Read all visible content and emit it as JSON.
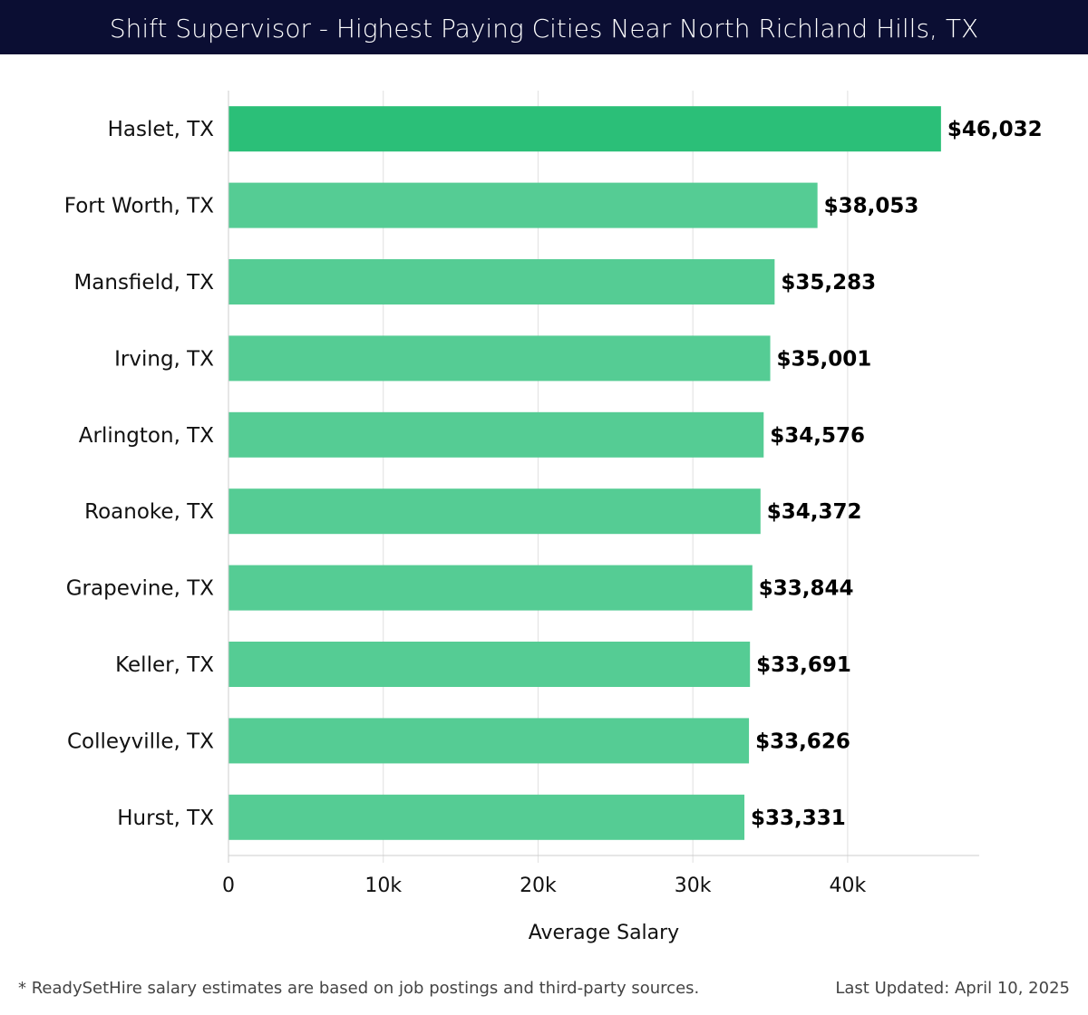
{
  "header": {
    "title": "Shift Supervisor - Highest Paying Cities Near North Richland Hills, TX"
  },
  "chart_data": {
    "type": "bar",
    "orientation": "horizontal",
    "categories": [
      "Haslet, TX",
      "Fort Worth, TX",
      "Mansfield, TX",
      "Irving, TX",
      "Arlington, TX",
      "Roanoke, TX",
      "Grapevine, TX",
      "Keller, TX",
      "Colleyville, TX",
      "Hurst, TX"
    ],
    "values": [
      46032,
      38053,
      35283,
      35001,
      34576,
      34372,
      33844,
      33691,
      33626,
      33331
    ],
    "value_labels": [
      "$46,032",
      "$38,053",
      "$35,283",
      "$35,001",
      "$34,576",
      "$34,372",
      "$33,844",
      "$33,691",
      "$33,626",
      "$33,331"
    ],
    "xlabel": "Average Salary",
    "xlim": [
      0,
      48500
    ],
    "xticks": [
      0,
      10000,
      20000,
      30000,
      40000
    ],
    "xtick_labels": [
      "0",
      "10k",
      "20k",
      "30k",
      "40k"
    ],
    "grid": true,
    "colors": {
      "top_bar": "#2bbf78",
      "bar": "#55cc94",
      "grid": "#e0e0e0",
      "axis": "#cccccc"
    }
  },
  "footer": {
    "note": "* ReadySetHire salary estimates are based on job postings and third-party sources.",
    "updated": "Last Updated: April 10, 2025"
  }
}
